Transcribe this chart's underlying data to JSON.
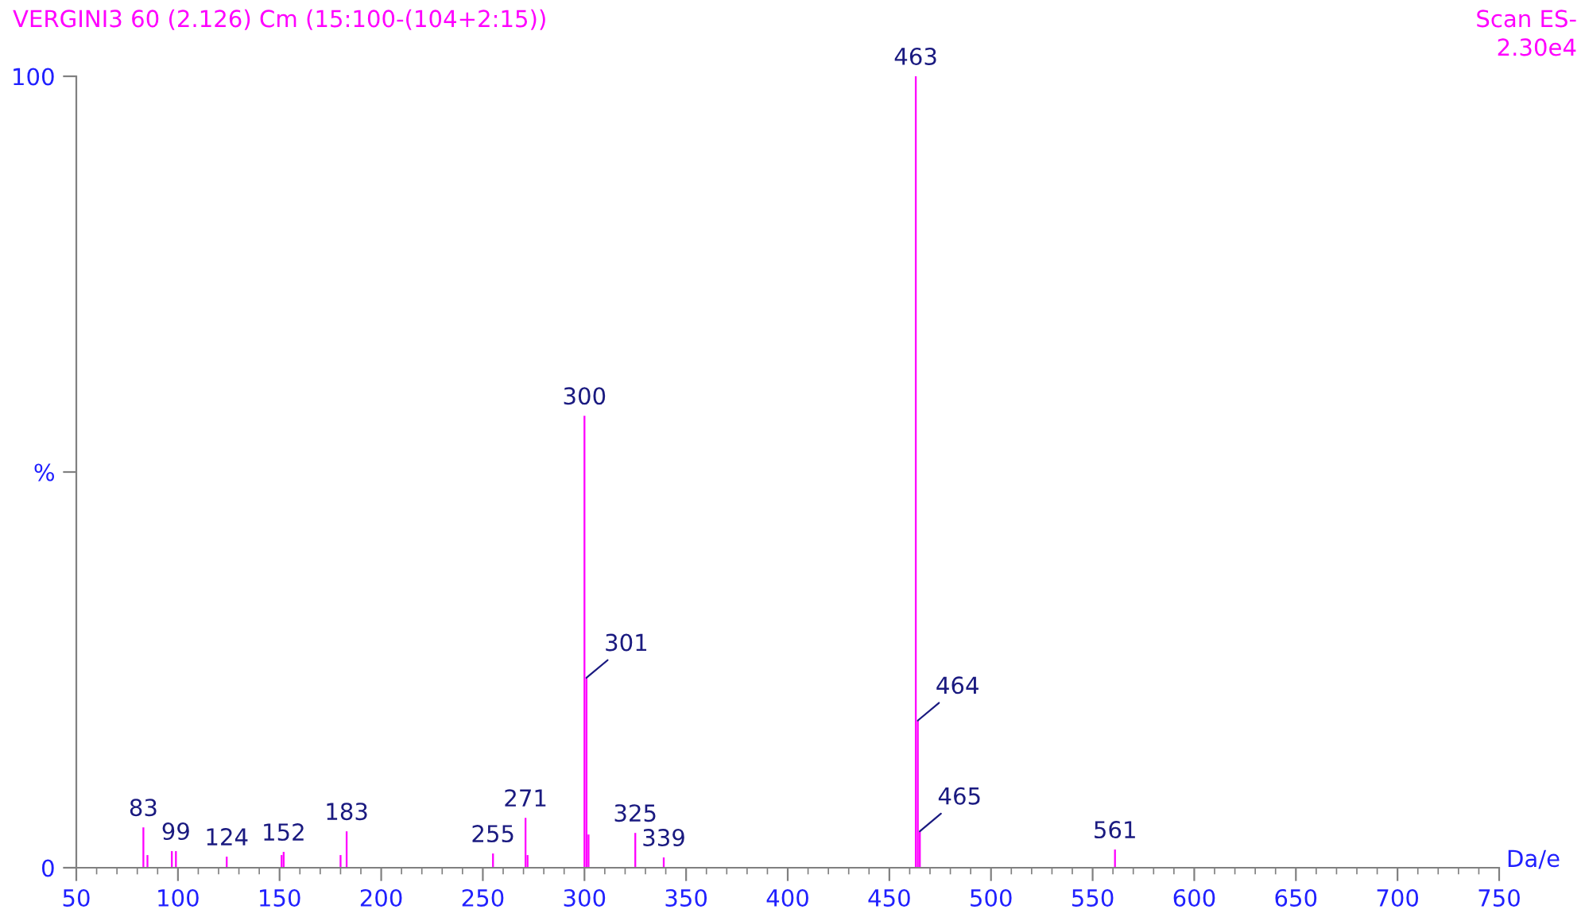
{
  "chart_data": {
    "type": "bar",
    "title": "VERGINI3 60 (2.126) Cm (15:100-(104+2:15))",
    "xlabel": "Da/e",
    "x": [
      83,
      85,
      97,
      99,
      124,
      151,
      152,
      180,
      183,
      255,
      271,
      272,
      300,
      301,
      302,
      325,
      339,
      463,
      464,
      465,
      561
    ],
    "series": [
      {
        "color": "#ff00ff",
        "values": [
          5.1,
          1.6,
          2.1,
          2.1,
          1.4,
          1.6,
          2.0,
          1.6,
          4.6,
          1.8,
          6.3,
          1.6,
          57.1,
          24.0,
          4.2,
          4.4,
          1.3,
          100,
          18.6,
          4.6,
          2.3
        ]
      }
    ],
    "xlim": [
      50,
      750
    ],
    "xticks": [
      50,
      100,
      150,
      200,
      250,
      300,
      350,
      400,
      450,
      500,
      550,
      600,
      650,
      700,
      750
    ],
    "ylim": [
      0,
      100
    ],
    "yticks": [
      0,
      {
        "value": 50,
        "label": "%"
      },
      100
    ],
    "grid": false,
    "legend": false,
    "annotations": [
      "Scan ES-",
      "2.30e4",
      {
        "text": "83",
        "x": 83,
        "y": 5.1
      },
      {
        "text": "99",
        "x": 99,
        "y": 2.1
      },
      {
        "text": "124",
        "x": 124,
        "y": 1.4
      },
      {
        "text": "152",
        "x": 152,
        "y": 2.0
      },
      {
        "text": "183",
        "x": 183,
        "y": 4.6
      },
      {
        "text": "255",
        "x": 255,
        "y": 1.8
      },
      {
        "text": "271",
        "x": 271,
        "y": 6.3
      },
      {
        "text": "300",
        "x": 300,
        "y": 57.1
      },
      {
        "text": "301",
        "x": 301,
        "y": 24.0
      },
      {
        "text": "325",
        "x": 325,
        "y": 4.4
      },
      {
        "text": "339",
        "x": 339,
        "y": 1.3
      },
      {
        "text": "463",
        "x": 463,
        "y": 100
      },
      {
        "text": "464",
        "x": 464,
        "y": 18.6
      },
      {
        "text": "465",
        "x": 465,
        "y": 4.6
      },
      {
        "text": "561",
        "x": 561,
        "y": 2.3
      }
    ]
  }
}
